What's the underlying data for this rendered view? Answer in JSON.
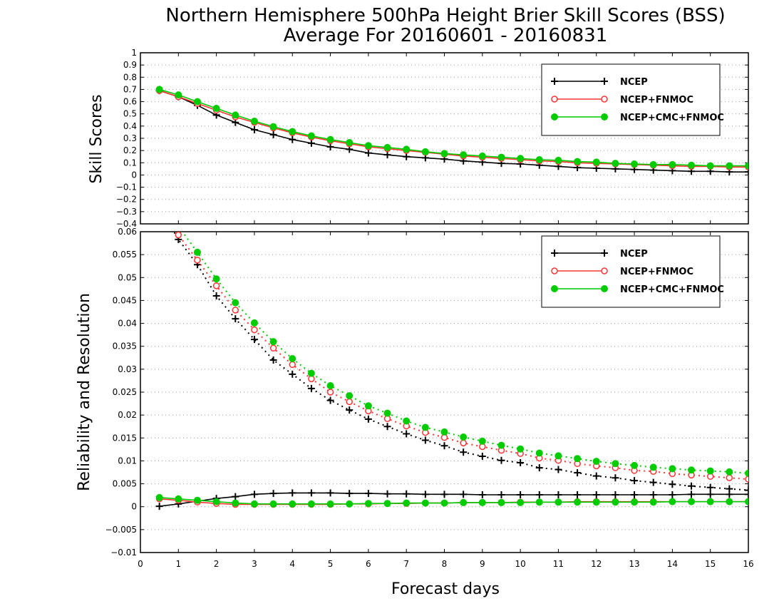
{
  "chart_data": [
    {
      "type": "line",
      "title": "Northern Hemisphere 500hPa Height Brier Skill Scores (BSS)",
      "subtitle": "Average For 20160601 - 20160831",
      "xlabel": "",
      "ylabel": "Skill Scores",
      "xlim": [
        0,
        16
      ],
      "ylim": [
        -0.4,
        1
      ],
      "y_ticks": [
        "1",
        "0.9",
        "0.8",
        "0.7",
        "0.6",
        "0.5",
        "0.4",
        "0.3",
        "0.2",
        "0.1",
        "0",
        "−0.1",
        "−0.2",
        "−0.3",
        "−0.4"
      ],
      "grid": "horizontal dotted",
      "legend": "top-right",
      "x": [
        0.5,
        1,
        1.5,
        2,
        2.5,
        3,
        3.5,
        4,
        4.5,
        5,
        5.5,
        6,
        6.5,
        7,
        7.5,
        8,
        8.5,
        9,
        9.5,
        10,
        10.5,
        11,
        11.5,
        12,
        12.5,
        13,
        13.5,
        14,
        14.5,
        15,
        15.5,
        16
      ],
      "series": [
        {
          "name": "NCEP",
          "color": "#000000",
          "marker": "plus",
          "values": [
            0.69,
            0.64,
            0.57,
            0.49,
            0.43,
            0.37,
            0.33,
            0.29,
            0.26,
            0.23,
            0.21,
            0.18,
            0.165,
            0.15,
            0.14,
            0.13,
            0.115,
            0.105,
            0.095,
            0.09,
            0.08,
            0.07,
            0.06,
            0.055,
            0.05,
            0.045,
            0.04,
            0.035,
            0.03,
            0.03,
            0.025,
            0.025
          ]
        },
        {
          "name": "NCEP+FNMOC",
          "color": "#ff3333",
          "marker": "open-circle",
          "values": [
            0.69,
            0.64,
            0.585,
            0.53,
            0.475,
            0.43,
            0.385,
            0.345,
            0.31,
            0.28,
            0.255,
            0.23,
            0.215,
            0.2,
            0.185,
            0.17,
            0.155,
            0.145,
            0.135,
            0.125,
            0.115,
            0.11,
            0.1,
            0.095,
            0.09,
            0.085,
            0.08,
            0.075,
            0.07,
            0.07,
            0.065,
            0.065
          ]
        },
        {
          "name": "NCEP+CMC+FNMOC",
          "color": "#00cc00",
          "marker": "filled-circle",
          "values": [
            0.7,
            0.655,
            0.6,
            0.545,
            0.49,
            0.44,
            0.395,
            0.355,
            0.32,
            0.29,
            0.265,
            0.24,
            0.225,
            0.21,
            0.19,
            0.175,
            0.165,
            0.155,
            0.145,
            0.135,
            0.125,
            0.12,
            0.11,
            0.105,
            0.095,
            0.09,
            0.085,
            0.085,
            0.08,
            0.075,
            0.075,
            0.075
          ]
        }
      ]
    },
    {
      "type": "line",
      "xlabel": "Forecast days",
      "ylabel": "Reliability and Resolution",
      "xlim": [
        0,
        16
      ],
      "ylim": [
        -0.01,
        0.06
      ],
      "x_ticks": [
        "0",
        "1",
        "2",
        "3",
        "4",
        "5",
        "6",
        "7",
        "8",
        "9",
        "10",
        "11",
        "12",
        "13",
        "14",
        "15",
        "16"
      ],
      "y_ticks": [
        "0.06",
        "0.055",
        "0.05",
        "0.045",
        "0.04",
        "0.035",
        "0.03",
        "0.025",
        "0.02",
        "0.015",
        "0.01",
        "0.005",
        "0",
        "−0.005",
        "−0.01"
      ],
      "grid": "horizontal dotted",
      "legend": "top-right",
      "x": [
        0.5,
        1,
        1.5,
        2,
        2.5,
        3,
        3.5,
        4,
        4.5,
        5,
        5.5,
        6,
        6.5,
        7,
        7.5,
        8,
        8.5,
        9,
        9.5,
        10,
        10.5,
        11,
        11.5,
        12,
        12.5,
        13,
        13.5,
        14,
        14.5,
        15,
        15.5,
        16
      ],
      "resolution_series": [
        {
          "name": "NCEP",
          "color": "#000000",
          "marker": "plus",
          "values": [
            0.0655,
            0.0583,
            0.0528,
            0.046,
            0.041,
            0.0365,
            0.032,
            0.0289,
            0.0258,
            0.0232,
            0.0211,
            0.0191,
            0.0175,
            0.0159,
            0.0145,
            0.0133,
            0.0119,
            0.011,
            0.0101,
            0.0096,
            0.0085,
            0.0081,
            0.0074,
            0.0067,
            0.0063,
            0.0057,
            0.0053,
            0.0049,
            0.0045,
            0.0042,
            0.0039,
            0.0036
          ]
        },
        {
          "name": "NCEP+FNMOC",
          "color": "#ff3333",
          "marker": "open-circle",
          "values": [
            0.0665,
            0.0593,
            0.0538,
            0.0482,
            0.0429,
            0.0386,
            0.0346,
            0.031,
            0.0279,
            0.025,
            0.0229,
            0.0209,
            0.0192,
            0.0176,
            0.0162,
            0.0151,
            0.0139,
            0.0131,
            0.0123,
            0.0116,
            0.0106,
            0.0101,
            0.0094,
            0.0089,
            0.0085,
            0.0079,
            0.0077,
            0.0072,
            0.0069,
            0.0066,
            0.0063,
            0.006
          ]
        },
        {
          "name": "NCEP+CMC+FNMOC",
          "color": "#00cc00",
          "marker": "filled-circle",
          "values": [
            0.0675,
            0.0612,
            0.0555,
            0.0497,
            0.0445,
            0.0401,
            0.036,
            0.0323,
            0.0291,
            0.0264,
            0.0242,
            0.022,
            0.0204,
            0.0187,
            0.0173,
            0.0163,
            0.0152,
            0.0143,
            0.0134,
            0.0126,
            0.0117,
            0.0111,
            0.0105,
            0.0099,
            0.0094,
            0.009,
            0.0086,
            0.0083,
            0.008,
            0.0078,
            0.0076,
            0.0073
          ]
        }
      ],
      "reliability_series": [
        {
          "name": "NCEP",
          "color": "#000000",
          "marker": "plus",
          "values": [
            0.0001,
            0.0006,
            0.0012,
            0.0018,
            0.0022,
            0.0027,
            0.0029,
            0.003,
            0.003,
            0.003,
            0.0029,
            0.0029,
            0.0028,
            0.0028,
            0.0027,
            0.0027,
            0.0027,
            0.0026,
            0.0026,
            0.0026,
            0.0026,
            0.0026,
            0.0026,
            0.0026,
            0.0026,
            0.0026,
            0.0026,
            0.0026,
            0.0027,
            0.0027,
            0.0027,
            0.0027
          ]
        },
        {
          "name": "NCEP+FNMOC",
          "color": "#ff3333",
          "marker": "open-circle",
          "values": [
            0.0017,
            0.0014,
            0.001,
            0.0007,
            0.0005,
            0.0005,
            0.0005,
            0.0005,
            0.0005,
            0.0005,
            0.0006,
            0.0006,
            0.0007,
            0.0007,
            0.0008,
            0.0008,
            0.0009,
            0.0009,
            0.0009,
            0.001,
            0.001,
            0.001,
            0.0011,
            0.0011,
            0.0011,
            0.0011,
            0.0011,
            0.0011,
            0.0011,
            0.0011,
            0.0011,
            0.0011
          ]
        },
        {
          "name": "NCEP+CMC+FNMOC",
          "color": "#00cc00",
          "marker": "filled-circle",
          "values": [
            0.002,
            0.0017,
            0.0014,
            0.0011,
            0.0008,
            0.0006,
            0.0006,
            0.0006,
            0.0006,
            0.0006,
            0.0006,
            0.0007,
            0.0007,
            0.0008,
            0.0008,
            0.0008,
            0.0009,
            0.0009,
            0.0009,
            0.0009,
            0.001,
            0.001,
            0.001,
            0.001,
            0.001,
            0.001,
            0.001,
            0.0011,
            0.0011,
            0.0011,
            0.0011,
            0.0011
          ]
        }
      ]
    }
  ]
}
